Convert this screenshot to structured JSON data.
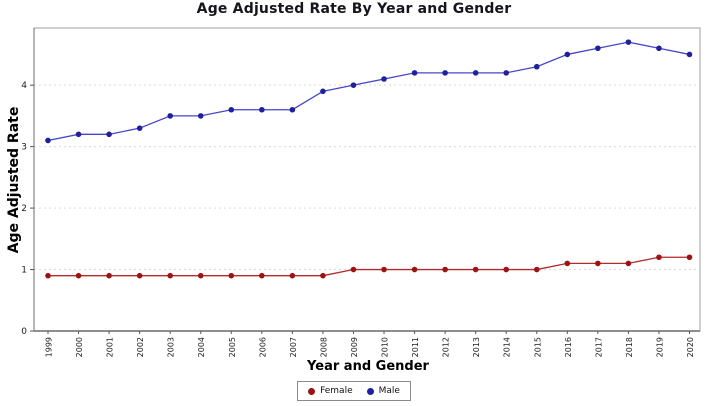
{
  "page": {
    "background": "#ffffff"
  },
  "chart_data": {
    "type": "line",
    "title": "Age Adjusted Rate By Year and Gender",
    "xlabel": "Year and Gender",
    "ylabel": "Age Adjusted Rate",
    "x": [
      "1999",
      "2000",
      "2001",
      "2002",
      "2003",
      "2004",
      "2005",
      "2006",
      "2007",
      "2008",
      "2009",
      "2010",
      "2011",
      "2012",
      "2013",
      "2014",
      "2015",
      "2016",
      "2017",
      "2018",
      "2019",
      "2020"
    ],
    "series": [
      {
        "name": "Female",
        "line_color": "#b22a2a",
        "marker_color": "#9c1313",
        "values": [
          0.9,
          0.9,
          0.9,
          0.9,
          0.9,
          0.9,
          0.9,
          0.9,
          0.9,
          0.9,
          1.0,
          1.0,
          1.0,
          1.0,
          1.0,
          1.0,
          1.0,
          1.1,
          1.1,
          1.1,
          1.2,
          1.2
        ]
      },
      {
        "name": "Male",
        "line_color": "#4646cd",
        "marker_color": "#20209c",
        "values": [
          3.1,
          3.2,
          3.2,
          3.3,
          3.5,
          3.5,
          3.6,
          3.6,
          3.6,
          3.9,
          4.0,
          4.1,
          4.2,
          4.2,
          4.2,
          4.2,
          4.3,
          4.5,
          4.6,
          4.7,
          4.6,
          4.5
        ]
      }
    ],
    "ylim": [
      0,
      4.93
    ],
    "yticks": [
      0,
      1,
      2,
      3,
      4
    ],
    "grid": "horizontal dotted at 1,2,3,4",
    "legend_position": "bottom-center",
    "legend_labels": [
      "Female",
      "Male"
    ]
  },
  "style_colors": {
    "frame": "#a2a2a2",
    "left_axis": "#6e6e6e",
    "bottom_axis": "#8e8e8e",
    "gridline": "#d9d9d9",
    "tick": "#555555",
    "tick_label": "#1c1c1c"
  }
}
